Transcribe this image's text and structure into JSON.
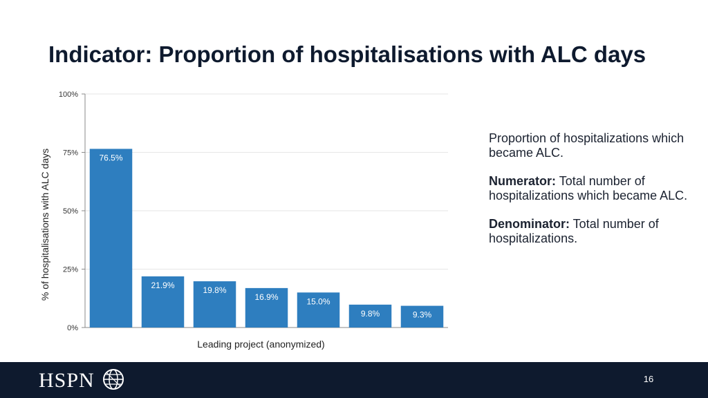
{
  "slide": {
    "title": "Indicator: Proportion of hospitalisations with ALC days",
    "description": {
      "intro": "Proportion of hospitalizations which became ALC.",
      "numerator_label": "Numerator:",
      "numerator_text": " Total number of hospitalizations which became ALC.",
      "denominator_label": "Denominator:",
      "denominator_text": " Total number of hospitalizations."
    },
    "footer": {
      "logo": "HSPN",
      "page_number": "16"
    }
  },
  "colors": {
    "bar": "#2e7ebf",
    "footer": "#0e1a2e",
    "title": "#0e1a2e"
  },
  "chart_data": {
    "type": "bar",
    "categories": [
      "",
      "",
      "",
      "",
      "",
      "",
      ""
    ],
    "values": [
      76.5,
      21.9,
      19.8,
      16.9,
      15.0,
      9.8,
      9.3
    ],
    "data_labels": [
      "76.5%",
      "21.9%",
      "19.8%",
      "16.9%",
      "15.0%",
      "9.8%",
      "9.3%"
    ],
    "xlabel": "Leading project (anonymized)",
    "ylabel": "% of hospitalisations with ALC days",
    "ylim": [
      0,
      100
    ],
    "yticks": [
      0,
      25,
      50,
      75,
      100
    ],
    "ytick_labels": [
      "0%",
      "25%",
      "50%",
      "75%",
      "100%"
    ],
    "grid": true,
    "legend": "none"
  }
}
